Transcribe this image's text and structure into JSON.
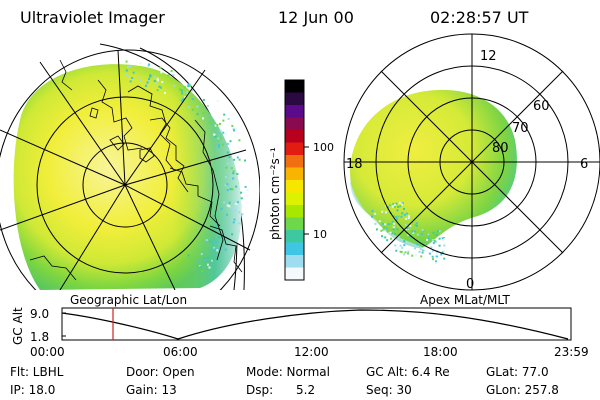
{
  "header": {
    "instrument": "Ultraviolet Imager",
    "date": "12 Jun 00",
    "time": "02:28:57 UT"
  },
  "colorbar": {
    "units_label": "photon cm⁻²s⁻¹",
    "tick_100": "100",
    "tick_10": "10",
    "colors": [
      "#000000",
      "#2a0a40",
      "#5a0a8a",
      "#8a0a50",
      "#b8001e",
      "#e21c10",
      "#f06f10",
      "#f8b400",
      "#f7e600",
      "#dcf200",
      "#a8e800",
      "#6cd84a",
      "#3ec8a0",
      "#40c6e4",
      "#a0dcf0",
      "#f4fafc"
    ]
  },
  "geo_panel": {
    "label": "Geographic Lat/Lon"
  },
  "polar_panel": {
    "label": "Apex MLat/MLT",
    "mlt_labels": {
      "top": "12",
      "right": "6",
      "bottom": "0",
      "left": "18"
    },
    "mlat_labels": [
      "60",
      "70",
      "80"
    ]
  },
  "altitude_plot": {
    "axis_label": "GC Alt",
    "y_top": "9.0",
    "y_bottom": "1.8",
    "time_ticks": [
      "00:00",
      "06:00",
      "12:00",
      "18:00",
      "23:59"
    ],
    "marker_color": "#d02020"
  },
  "info": {
    "filter": "Flt: LBHL",
    "door": "Door: Open",
    "mode": "Mode: Normal",
    "gc_alt": "GC Alt: 6.4 Re",
    "glat": "GLat:  77.0",
    "ip": "IP: 18.0",
    "gain": "Gain: 13",
    "dsp": "Dsp:      5.2",
    "seq": "Seq: 30",
    "glon": "GLon: 257.8"
  }
}
